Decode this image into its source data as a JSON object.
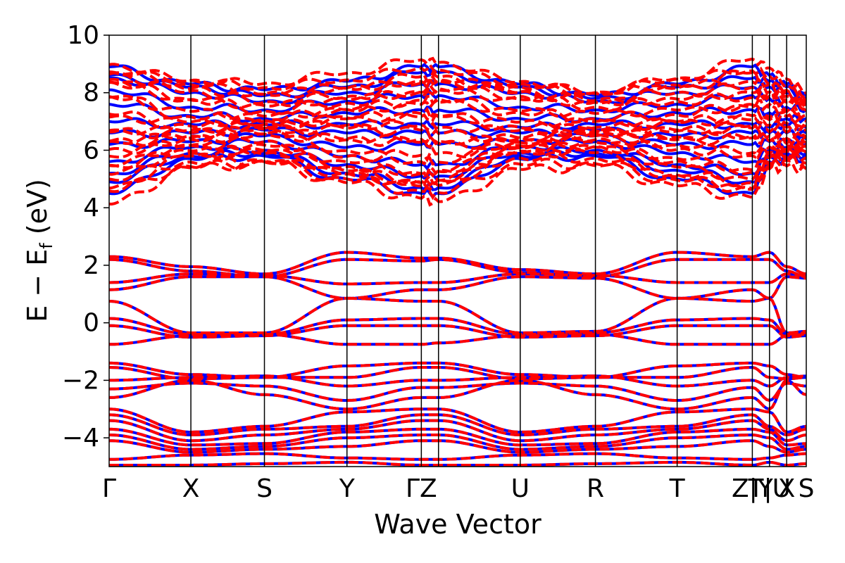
{
  "chart_data": {
    "type": "line",
    "title": "",
    "xlabel": "Wave Vector",
    "ylabel": {
      "main": "E − E",
      "sub": "f",
      "unit": " (eV)"
    },
    "ylim": [
      -5,
      10
    ],
    "yticks": [
      -4,
      -2,
      0,
      2,
      4,
      6,
      8,
      10
    ],
    "ytick_labels": [
      "−4",
      "−2",
      "0",
      "2",
      "4",
      "6",
      "8",
      "10"
    ],
    "kpath": [
      {
        "label": "Γ",
        "k": 0.0
      },
      {
        "label": "X",
        "k": 1.0
      },
      {
        "label": "S",
        "k": 1.9
      },
      {
        "label": "Y",
        "k": 2.91
      },
      {
        "label": "ΓZ",
        "k": 3.82
      },
      {
        "label": "",
        "k": 4.03
      },
      {
        "label": "U",
        "k": 5.03
      },
      {
        "label": "R",
        "k": 5.95
      },
      {
        "label": "T",
        "k": 6.95
      },
      {
        "label": "Z|Y",
        "k": 7.87
      },
      {
        "label": "T|U",
        "k": 8.08
      },
      {
        "label": "X",
        "k": 8.29
      },
      {
        "label": "S",
        "k": 8.53
      }
    ],
    "xlim": [
      0,
      8.53
    ],
    "grid": false,
    "legend": "none",
    "series_style": [
      {
        "color": "#0000ff",
        "dash": "solid"
      },
      {
        "color": "#ff0000",
        "dash": "dashed"
      }
    ],
    "band_energy_at_points": {
      "valence": [
        [
          2.3,
          1.95,
          1.7,
          2.45,
          2.25,
          2.25,
          1.85,
          1.7,
          2.45,
          2.3,
          2.45,
          1.95,
          1.7
        ],
        [
          2.2,
          1.8,
          1.6,
          2.2,
          2.15,
          2.2,
          1.75,
          1.6,
          2.2,
          2.2,
          2.2,
          1.8,
          1.6
        ],
        [
          1.4,
          1.7,
          1.65,
          1.35,
          1.4,
          1.4,
          1.7,
          1.65,
          1.4,
          1.4,
          1.4,
          1.7,
          1.65
        ],
        [
          1.15,
          1.6,
          1.6,
          0.85,
          1.15,
          1.15,
          1.6,
          1.55,
          0.85,
          1.15,
          0.85,
          1.6,
          1.55
        ],
        [
          0.75,
          -0.35,
          -0.35,
          0.85,
          0.75,
          0.75,
          -0.35,
          -0.3,
          0.85,
          0.75,
          0.85,
          -0.35,
          -0.3
        ],
        [
          0.15,
          -0.4,
          -0.4,
          0.1,
          0.15,
          0.15,
          -0.4,
          -0.35,
          0.1,
          0.15,
          0.1,
          -0.4,
          -0.35
        ],
        [
          -0.1,
          -0.5,
          -0.45,
          -0.1,
          -0.1,
          -0.1,
          -0.5,
          -0.45,
          -0.1,
          -0.1,
          -0.1,
          -0.5,
          -0.45
        ],
        [
          -0.75,
          -0.45,
          -0.4,
          -0.75,
          -0.75,
          -0.7,
          -0.45,
          -0.4,
          -0.75,
          -0.75,
          -0.75,
          -0.45,
          -0.4
        ],
        [
          -1.4,
          -1.8,
          -1.9,
          -1.5,
          -1.4,
          -1.4,
          -1.8,
          -1.9,
          -1.5,
          -1.4,
          -1.5,
          -1.8,
          -1.9
        ],
        [
          -1.55,
          -1.95,
          -1.9,
          -1.9,
          -1.55,
          -1.55,
          -1.95,
          -1.9,
          -1.9,
          -1.55,
          -1.9,
          -1.95,
          -1.9
        ],
        [
          -2.0,
          -1.9,
          -1.85,
          -2.2,
          -2.0,
          -2.0,
          -1.9,
          -1.85,
          -2.2,
          -2.0,
          -2.2,
          -1.9,
          -1.85
        ],
        [
          -2.3,
          -2.1,
          -2.2,
          -2.7,
          -2.25,
          -2.25,
          -2.1,
          -2.2,
          -2.7,
          -2.25,
          -2.7,
          -2.1,
          -2.2
        ],
        [
          -2.6,
          -2.0,
          -2.5,
          -3.0,
          -2.6,
          -2.6,
          -2.0,
          -2.5,
          -3.0,
          -2.6,
          -3.0,
          -2.0,
          -2.5
        ],
        [
          -3.0,
          -3.8,
          -3.6,
          -3.1,
          -3.0,
          -3.0,
          -3.8,
          -3.6,
          -3.1,
          -3.0,
          -3.1,
          -3.8,
          -3.6
        ],
        [
          -3.2,
          -3.9,
          -3.7,
          -3.6,
          -3.2,
          -3.2,
          -3.9,
          -3.7,
          -3.6,
          -3.2,
          -3.6,
          -3.9,
          -3.7
        ],
        [
          -3.4,
          -4.1,
          -3.9,
          -3.7,
          -3.4,
          -3.4,
          -4.1,
          -3.9,
          -3.7,
          -3.4,
          -3.7,
          -4.1,
          -3.9
        ],
        [
          -3.7,
          -4.25,
          -4.2,
          -3.8,
          -3.7,
          -3.7,
          -4.25,
          -4.2,
          -3.8,
          -3.7,
          -3.8,
          -4.25,
          -4.2
        ],
        [
          -3.9,
          -4.4,
          -4.3,
          -4.0,
          -3.9,
          -3.9,
          -4.4,
          -4.3,
          -4.0,
          -3.9,
          -4.0,
          -4.4,
          -4.3
        ],
        [
          -4.1,
          -4.5,
          -4.4,
          -4.3,
          -4.1,
          -4.1,
          -4.5,
          -4.4,
          -4.3,
          -4.1,
          -4.3,
          -4.5,
          -4.4
        ],
        [
          -4.75,
          -4.6,
          -4.55,
          -4.7,
          -4.75,
          -4.75,
          -4.6,
          -4.55,
          -4.7,
          -4.75,
          -4.7,
          -4.6,
          -4.55
        ],
        [
          -4.95,
          -4.95,
          -4.9,
          -4.85,
          -4.95,
          -4.95,
          -4.95,
          -4.9,
          -4.85,
          -4.95,
          -4.85,
          -4.95,
          -4.9
        ]
      ],
      "conduction": [
        [
          8.9,
          8.3,
          8.1,
          8.4,
          8.9,
          8.9,
          8.3,
          7.9,
          8.3,
          8.9,
          8.6,
          8.3,
          7.9
        ],
        [
          8.6,
          8.2,
          7.9,
          8.2,
          8.7,
          8.7,
          8.2,
          7.8,
          8.2,
          8.5,
          8.4,
          8.2,
          7.8
        ],
        [
          8.5,
          8.0,
          7.7,
          8.0,
          8.3,
          8.3,
          8.0,
          7.7,
          8.0,
          8.2,
          8.2,
          8.0,
          7.6
        ],
        [
          8.1,
          7.5,
          7.4,
          7.7,
          7.9,
          7.9,
          7.5,
          7.4,
          7.6,
          7.9,
          7.8,
          7.5,
          7.4
        ],
        [
          7.6,
          7.2,
          7.1,
          7.3,
          7.4,
          7.4,
          7.1,
          7.1,
          7.3,
          7.4,
          7.3,
          7.1,
          7.1
        ],
        [
          7.0,
          6.9,
          6.9,
          6.9,
          6.9,
          6.9,
          6.8,
          6.9,
          6.9,
          6.9,
          6.8,
          6.9,
          6.8
        ],
        [
          6.6,
          6.6,
          6.7,
          6.6,
          6.6,
          6.6,
          6.6,
          6.7,
          6.5,
          6.6,
          6.6,
          6.6,
          6.6
        ],
        [
          6.2,
          6.3,
          6.5,
          6.1,
          6.2,
          6.2,
          6.3,
          6.5,
          6.2,
          6.2,
          6.3,
          6.3,
          6.4
        ],
        [
          5.6,
          6.1,
          6.3,
          5.8,
          5.5,
          5.5,
          6.1,
          6.3,
          5.9,
          5.6,
          6.0,
          6.1,
          6.2
        ],
        [
          5.2,
          5.9,
          6.0,
          5.5,
          5.1,
          5.1,
          5.9,
          6.0,
          5.5,
          5.2,
          5.8,
          5.9,
          5.9
        ],
        [
          4.9,
          5.8,
          5.9,
          5.2,
          4.7,
          4.7,
          5.8,
          5.9,
          5.3,
          4.9,
          5.6,
          5.8,
          5.8
        ],
        [
          4.5,
          5.7,
          5.8,
          5.0,
          4.5,
          4.5,
          5.7,
          5.8,
          5.0,
          4.5,
          5.5,
          5.7,
          5.7
        ]
      ]
    }
  }
}
